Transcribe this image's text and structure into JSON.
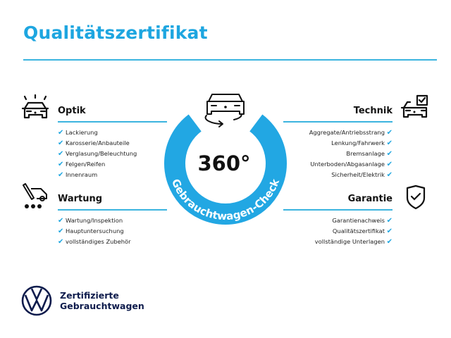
{
  "title": "Qualitätszertifikat",
  "center": {
    "big": "360°",
    "ring_text": "Gebrauchtwagen-Check"
  },
  "sections": {
    "optik": {
      "heading": "Optik",
      "items": [
        "Lackierung",
        "Karosserie/Anbauteile",
        "Verglasung/Beleuchtung",
        "Felgen/Reifen",
        "Innenraum"
      ]
    },
    "wartung": {
      "heading": "Wartung",
      "items": [
        "Wartung/Inspektion",
        "Hauptuntersuchung",
        "vollständiges Zubehör"
      ]
    },
    "technik": {
      "heading": "Technik",
      "items": [
        "Aggregate/Antriebsstrang",
        "Lenkung/Fahrwerk",
        "Bremsanlage",
        "Unterboden/Abgasanlage",
        "Sicherheit/Elektrik"
      ]
    },
    "garantie": {
      "heading": "Garantie",
      "items": [
        "Garantienachweis",
        "Qualitätszertifikat",
        "vollständige Unterlagen"
      ]
    }
  },
  "check_glyph": "✔",
  "logo": {
    "brand": "VW",
    "line1": "Zertifizierte",
    "line2": "Gebrauchtwagen"
  },
  "colors": {
    "accent": "#1ea6e0",
    "text": "#111111",
    "logo": "#0d1b4c"
  }
}
